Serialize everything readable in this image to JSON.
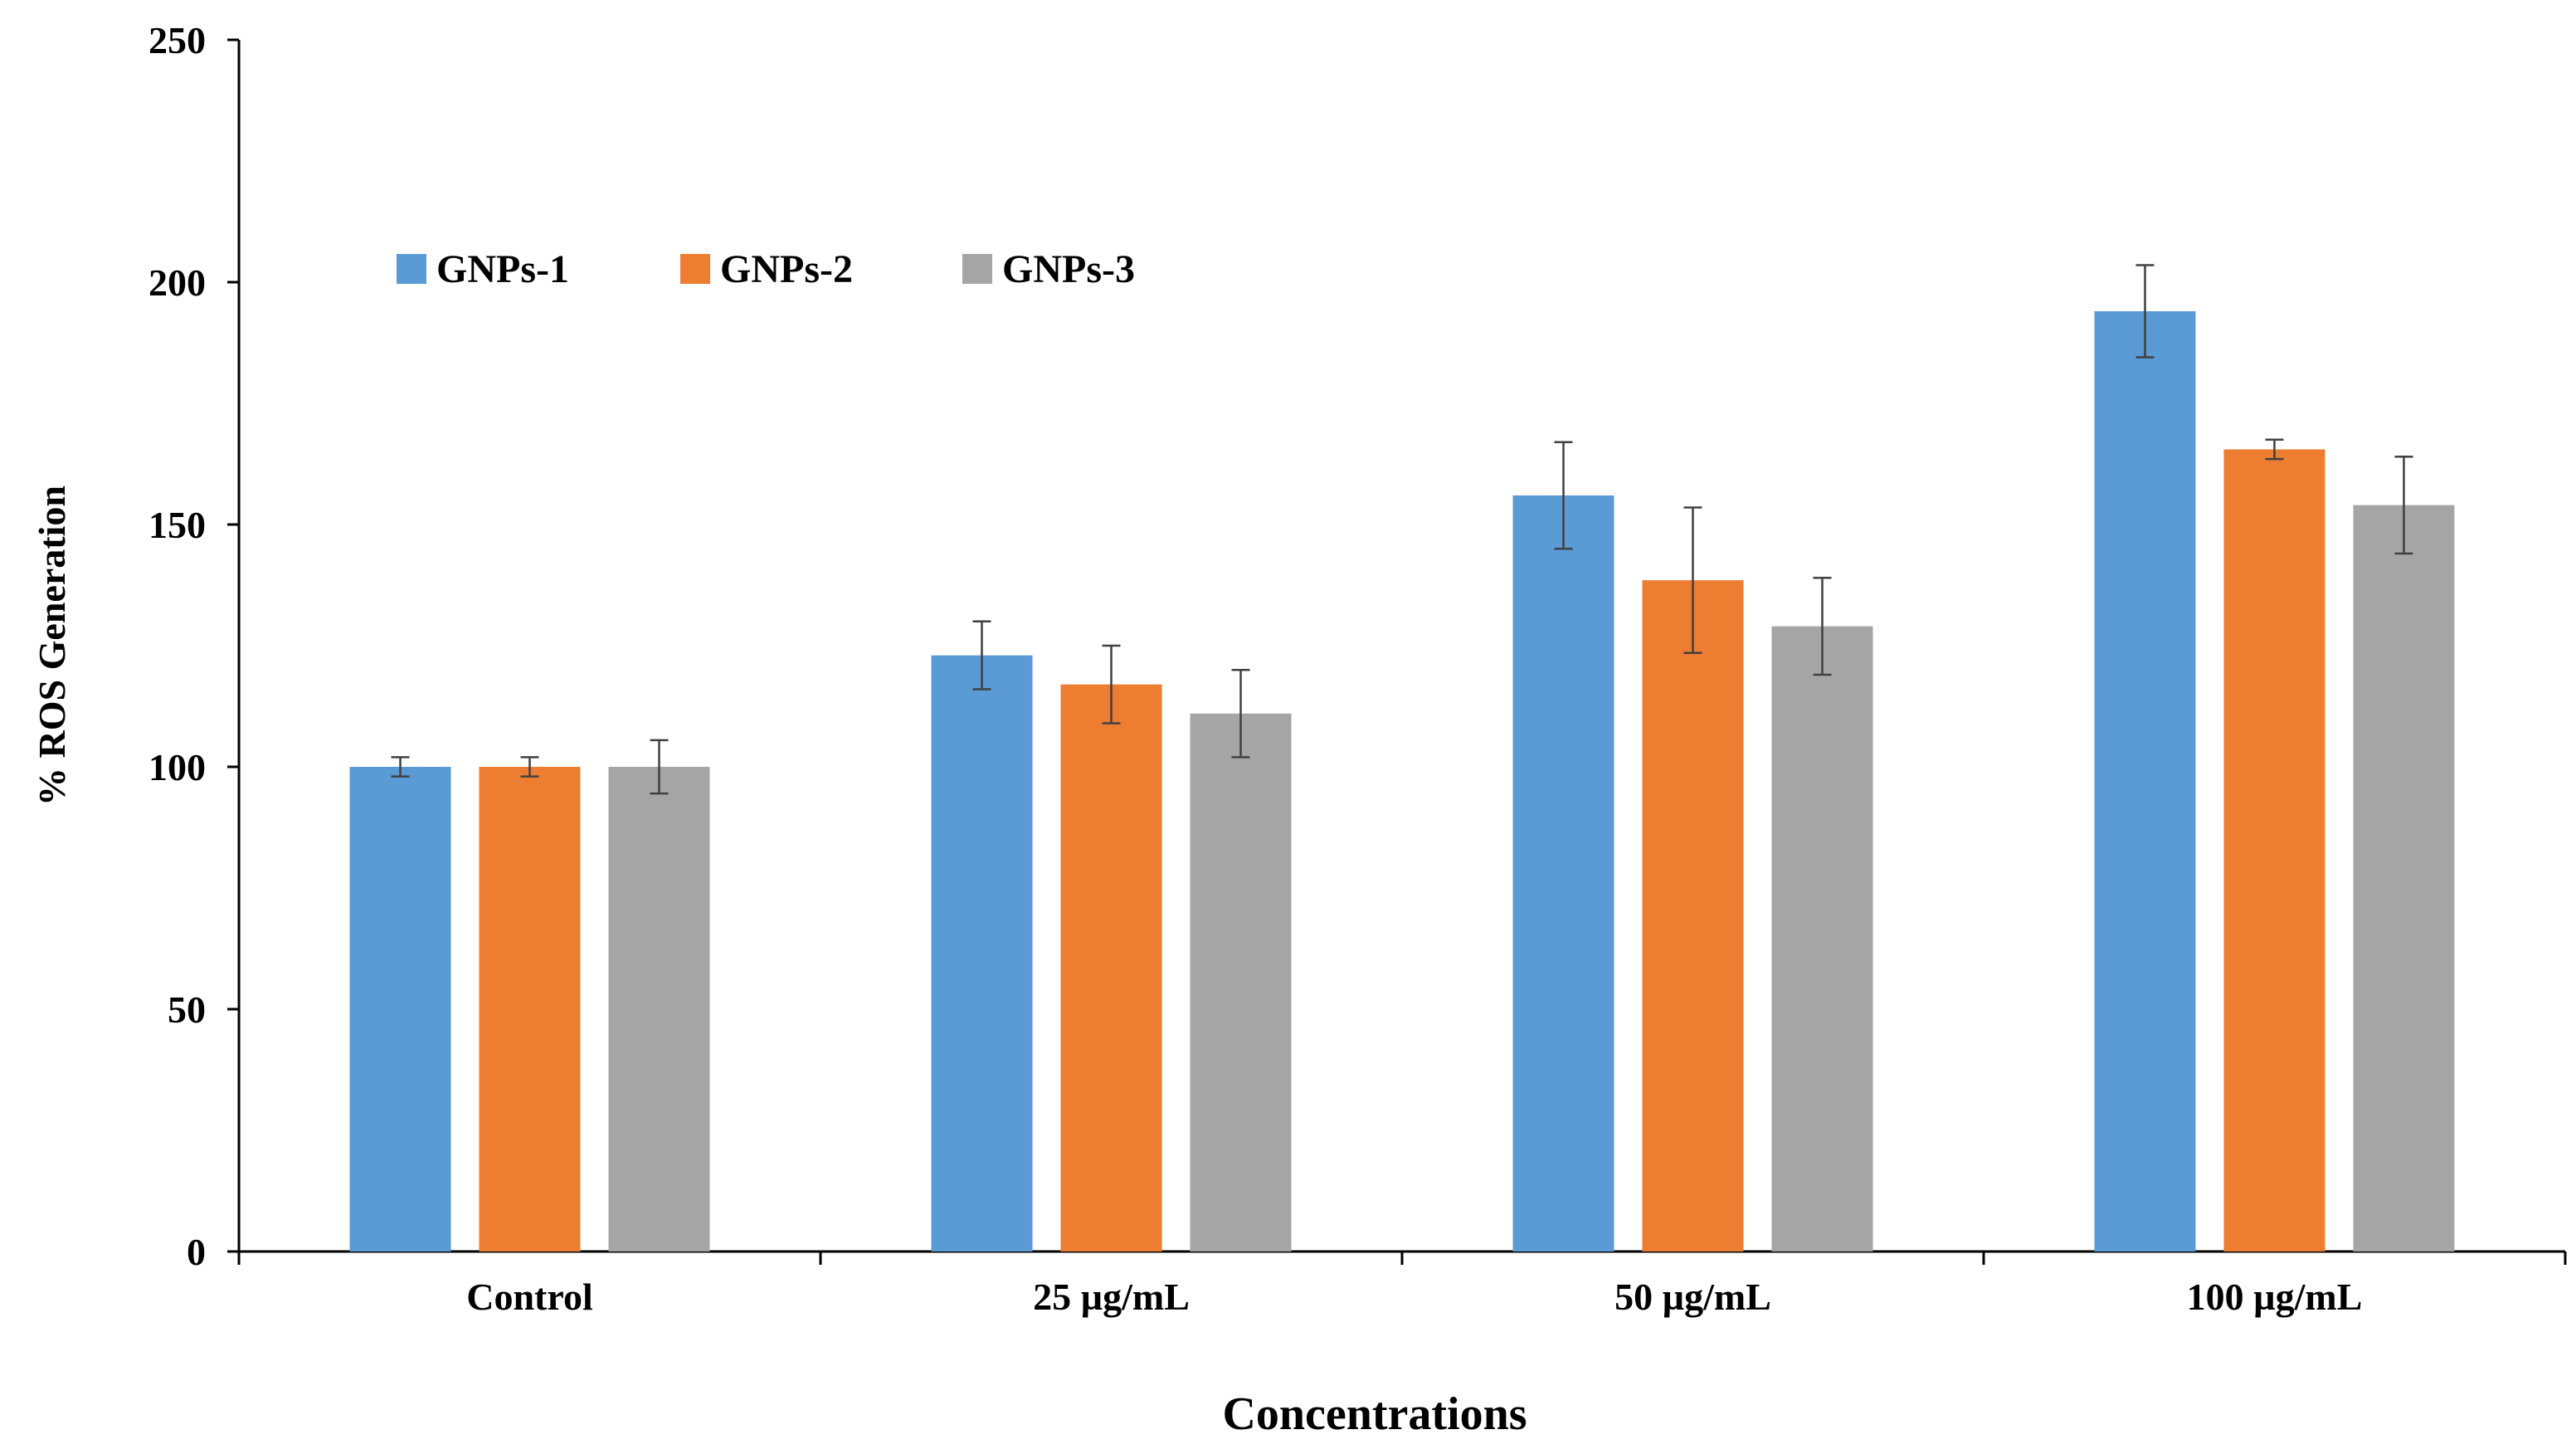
{
  "chart_data": {
    "type": "bar",
    "title": "",
    "xlabel": "Concentrations",
    "ylabel": "% ROS Generation",
    "categories": [
      "Control",
      "25 µg/mL",
      "50 µg/mL",
      "100 µg/mL"
    ],
    "ylim": [
      0,
      250
    ],
    "yticks": [
      0,
      50,
      100,
      150,
      200,
      250
    ],
    "grid": false,
    "legend_position": "top-left",
    "series": [
      {
        "name": "GNPs-1",
        "color": "#5B9BD5",
        "values": [
          100,
          123,
          156,
          194
        ],
        "errors": [
          2,
          7,
          11,
          9.5
        ]
      },
      {
        "name": "GNPs-2",
        "color": "#ED7D31",
        "values": [
          100,
          117,
          138.5,
          165.5
        ],
        "errors": [
          2,
          8,
          15,
          2
        ]
      },
      {
        "name": "GNPs-3",
        "color": "#A5A5A5",
        "values": [
          100,
          111,
          129,
          154
        ],
        "errors": [
          5.5,
          9,
          10,
          10
        ]
      }
    ]
  }
}
